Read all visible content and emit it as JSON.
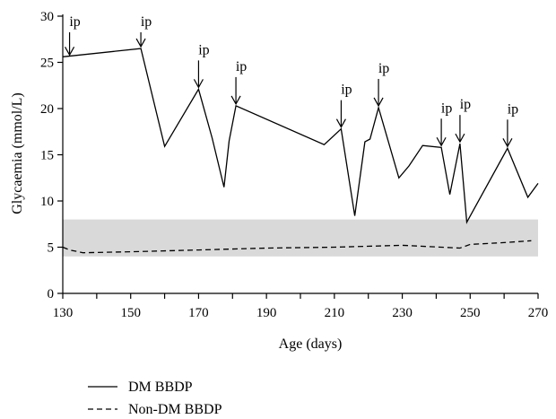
{
  "chart_data": {
    "type": "line",
    "title": "",
    "xlabel": "Age (days)",
    "ylabel": "Glycaemia (mmol/L)",
    "xlim": [
      130,
      270
    ],
    "ylim": [
      0,
      30
    ],
    "xticks": [
      130,
      150,
      170,
      190,
      210,
      230,
      250,
      270
    ],
    "yticks": [
      0,
      5,
      10,
      15,
      20,
      25,
      30
    ],
    "x_minor_tick_step": 10,
    "grid": false,
    "legend_position": "bottom-left",
    "normal_range_band": {
      "y_from": 4,
      "y_to": 8,
      "color": "#d9d9d9"
    },
    "series": [
      {
        "name": "DM BBDP",
        "style": "solid",
        "color": "#000000",
        "points": [
          [
            130,
            25.6
          ],
          [
            153,
            26.5
          ],
          [
            160,
            15.9
          ],
          [
            170,
            22.1
          ],
          [
            174,
            16.8
          ],
          [
            177.5,
            11.5
          ],
          [
            179,
            16.5
          ],
          [
            181,
            20.3
          ],
          [
            207,
            16.1
          ],
          [
            212,
            17.8
          ],
          [
            216,
            8.4
          ],
          [
            219,
            16.4
          ],
          [
            220.5,
            16.7
          ],
          [
            223,
            20.1
          ],
          [
            229,
            12.5
          ],
          [
            232,
            13.8
          ],
          [
            236,
            16.0
          ],
          [
            241.5,
            15.8
          ],
          [
            244,
            10.7
          ],
          [
            247,
            16.2
          ],
          [
            249,
            7.7
          ],
          [
            261,
            15.7
          ],
          [
            267,
            10.4
          ],
          [
            270,
            11.9
          ]
        ]
      },
      {
        "name": "Non-DM BBDP",
        "style": "dashed",
        "color": "#000000",
        "points": [
          [
            130,
            5.0
          ],
          [
            132,
            4.7
          ],
          [
            136,
            4.4
          ],
          [
            150,
            4.5
          ],
          [
            170,
            4.7
          ],
          [
            190,
            4.9
          ],
          [
            210,
            5.0
          ],
          [
            230,
            5.2
          ],
          [
            247,
            4.9
          ],
          [
            250,
            5.3
          ],
          [
            260,
            5.5
          ],
          [
            268,
            5.7
          ]
        ]
      }
    ],
    "annotations": [
      {
        "text": "ip",
        "x": 132,
        "y": 25.6
      },
      {
        "text": "ip",
        "x": 153,
        "y": 26.5
      },
      {
        "text": "ip",
        "x": 170,
        "y": 22.1
      },
      {
        "text": "ip",
        "x": 181,
        "y": 20.3
      },
      {
        "text": "ip",
        "x": 212,
        "y": 17.8
      },
      {
        "text": "ip",
        "x": 223,
        "y": 20.1
      },
      {
        "text": "ip",
        "x": 241.5,
        "y": 15.8
      },
      {
        "text": "ip",
        "x": 247,
        "y": 16.2
      },
      {
        "text": "ip",
        "x": 261,
        "y": 15.7
      }
    ]
  }
}
